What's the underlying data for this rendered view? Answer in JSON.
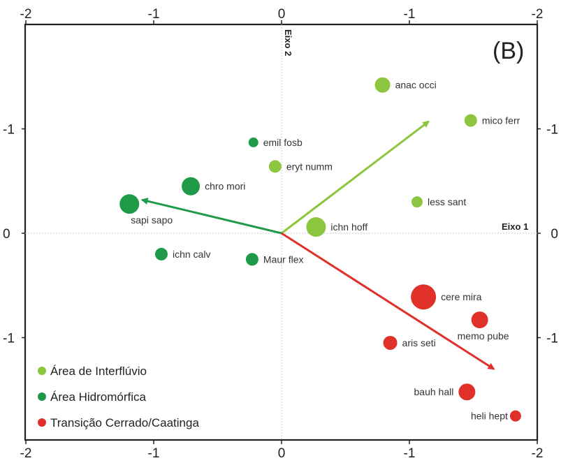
{
  "chart_data": {
    "type": "scatter",
    "panel_label": "(B)",
    "xlabel": "Eixo 1",
    "ylabel": "Eixo 2",
    "xlim": [
      -2,
      2
    ],
    "ylim": [
      -2,
      2
    ],
    "x_ticks": [
      "-2",
      "-1",
      "0",
      "-1",
      "-2"
    ],
    "y_ticks_left": [
      "-1",
      "0",
      "-1"
    ],
    "y_ticks_right": [
      "-1",
      "0",
      "-1"
    ],
    "colors": {
      "interfluvio": "#8cc63f",
      "hidromorfica": "#1e9a48",
      "transicao": "#e0302a"
    },
    "series": [
      {
        "name": "Área de Interflúvio",
        "color_key": "interfluvio",
        "points": [
          {
            "label": "anac occi",
            "x": 0.79,
            "y": 1.42,
            "size": 11
          },
          {
            "label": "mico ferr",
            "x": 1.48,
            "y": 1.08,
            "size": 9
          },
          {
            "label": "eryt numm",
            "x": -0.05,
            "y": 0.64,
            "size": 9
          },
          {
            "label": "less sant",
            "x": 1.06,
            "y": 0.3,
            "size": 8
          },
          {
            "label": "ichn hoff",
            "x": 0.27,
            "y": 0.06,
            "size": 14
          }
        ]
      },
      {
        "name": "Área Hidromórfica",
        "color_key": "hidromorfica",
        "points": [
          {
            "label": "emil fosb",
            "x": -0.22,
            "y": 0.87,
            "size": 7
          },
          {
            "label": "chro mori",
            "x": -0.71,
            "y": 0.45,
            "size": 13
          },
          {
            "label": "sapi sapo",
            "x": -1.19,
            "y": 0.28,
            "size": 14
          },
          {
            "label": "ichn calv",
            "x": -0.94,
            "y": -0.2,
            "size": 9
          },
          {
            "label": "Maur flex",
            "x": -0.23,
            "y": -0.25,
            "size": 9
          }
        ]
      },
      {
        "name": "Transição Cerrado/Caatinga",
        "color_key": "transicao",
        "points": [
          {
            "label": "cere mira",
            "x": 1.11,
            "y": -0.61,
            "size": 18
          },
          {
            "label": "memo pube",
            "x": 1.55,
            "y": -0.83,
            "size": 12
          },
          {
            "label": "aris seti",
            "x": 0.85,
            "y": -1.05,
            "size": 10
          },
          {
            "label": "bauh hall",
            "x": 1.45,
            "y": -1.52,
            "size": 12
          },
          {
            "label": "heli hept",
            "x": 1.83,
            "y": -1.75,
            "size": 8
          }
        ]
      }
    ],
    "vectors": [
      {
        "color_key": "interfluvio",
        "x": 1.15,
        "y": 1.07
      },
      {
        "color_key": "hidromorfica",
        "x": -1.09,
        "y": 0.32
      },
      {
        "color_key": "transicao",
        "x": 1.66,
        "y": -1.3
      }
    ],
    "legend": {
      "placement": "bottom-left",
      "items": [
        {
          "label": "Área de Interflúvio",
          "color_key": "interfluvio"
        },
        {
          "label": "Área Hidromórfica",
          "color_key": "hidromorfica"
        },
        {
          "label": "Transição Cerrado/Caatinga",
          "color_key": "transicao"
        }
      ]
    }
  }
}
